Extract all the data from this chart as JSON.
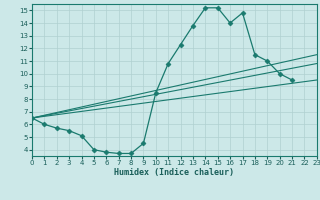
{
  "xlabel": "Humidex (Indice chaleur)",
  "background_color": "#cce8e8",
  "line_color": "#1a7a6e",
  "grid_color": "#b0d0d0",
  "xlim": [
    0,
    23
  ],
  "ylim": [
    3.5,
    15.5
  ],
  "xticks": [
    0,
    1,
    2,
    3,
    4,
    5,
    6,
    7,
    8,
    9,
    10,
    11,
    12,
    13,
    14,
    15,
    16,
    17,
    18,
    19,
    20,
    21,
    22,
    23
  ],
  "yticks": [
    4,
    5,
    6,
    7,
    8,
    9,
    10,
    11,
    12,
    13,
    14,
    15
  ],
  "main_curve": {
    "x": [
      0,
      1,
      2,
      3,
      4,
      5,
      6,
      7,
      8,
      9,
      10,
      11,
      12,
      13,
      14,
      15,
      16,
      17,
      18,
      19,
      20,
      21
    ],
    "y": [
      6.5,
      6.0,
      5.7,
      5.5,
      5.1,
      4.0,
      3.8,
      3.7,
      3.7,
      4.5,
      8.5,
      10.8,
      12.3,
      13.8,
      15.2,
      15.2,
      14.0,
      14.8,
      11.5,
      11.0,
      10.0,
      9.5
    ]
  },
  "fan_lines": [
    {
      "x": [
        0,
        23
      ],
      "y": [
        6.5,
        9.5
      ]
    },
    {
      "x": [
        0,
        23
      ],
      "y": [
        6.5,
        10.8
      ]
    },
    {
      "x": [
        0,
        23
      ],
      "y": [
        6.5,
        11.5
      ]
    }
  ]
}
